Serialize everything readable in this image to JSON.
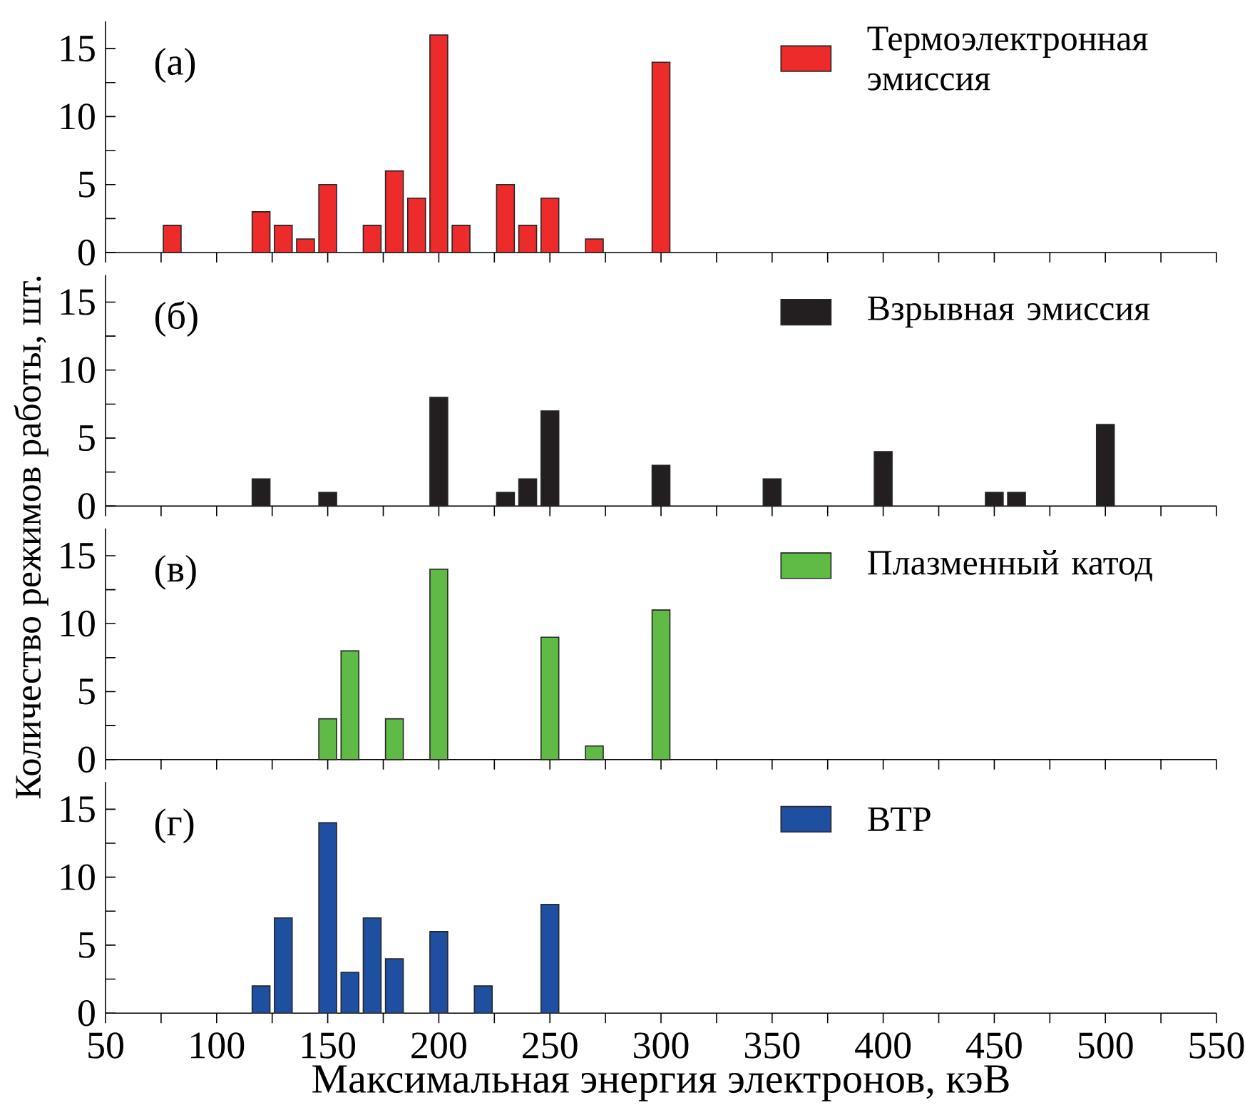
{
  "chart_data": [
    {
      "type": "bar",
      "ylabel": "Количество режимов работы, шт.",
      "annotations": [
        "(а)"
      ],
      "x": [
        80,
        120,
        130,
        140,
        150,
        170,
        180,
        190,
        200,
        210,
        230,
        240,
        250,
        270,
        300
      ],
      "series": [
        {
          "name": "Термоэлектронная эмиссия",
          "color": "#ee2b2b",
          "values": [
            2,
            3,
            2,
            1,
            5,
            2,
            6,
            4,
            16,
            2,
            5,
            2,
            4,
            1,
            14
          ]
        }
      ],
      "xlim": [
        50,
        550
      ],
      "xticks": [
        50,
        {
          "value": 75,
          "label": null
        },
        100,
        {
          "value": 125,
          "label": null
        },
        150,
        {
          "value": 175,
          "label": null
        },
        200,
        {
          "value": 225,
          "label": null
        },
        250,
        {
          "value": 275,
          "label": null
        },
        300,
        {
          "value": 325,
          "label": null
        },
        350,
        {
          "value": 375,
          "label": null
        },
        400,
        {
          "value": 425,
          "label": null
        },
        450,
        {
          "value": 475,
          "label": null
        },
        500,
        {
          "value": 525,
          "label": null
        },
        550
      ],
      "ylim": [
        0,
        17
      ],
      "yticks": [
        0,
        {
          "value": 2.5,
          "label": null
        },
        5,
        {
          "value": 7.5,
          "label": null
        },
        10,
        {
          "value": 12.5,
          "label": null
        },
        15
      ],
      "legend": "top right",
      "tick_labels": "y"
    },
    {
      "type": "bar",
      "annotations": [
        "(б)"
      ],
      "x": [
        120,
        150,
        200,
        230,
        240,
        250,
        300,
        350,
        400,
        450,
        460,
        500
      ],
      "series": [
        {
          "name": "Взрывная эмиссия",
          "color": "#231f20",
          "values": [
            2,
            1,
            8,
            1,
            2,
            7,
            3,
            2,
            4,
            1,
            1,
            6
          ]
        }
      ],
      "xlim": [
        50,
        550
      ],
      "xticks": [
        50,
        {
          "value": 75,
          "label": null
        },
        100,
        {
          "value": 125,
          "label": null
        },
        150,
        {
          "value": 175,
          "label": null
        },
        200,
        {
          "value": 225,
          "label": null
        },
        250,
        {
          "value": 275,
          "label": null
        },
        300,
        {
          "value": 325,
          "label": null
        },
        350,
        {
          "value": 375,
          "label": null
        },
        400,
        {
          "value": 425,
          "label": null
        },
        450,
        {
          "value": 475,
          "label": null
        },
        500,
        {
          "value": 525,
          "label": null
        },
        550
      ],
      "ylim": [
        0,
        17
      ],
      "yticks": [
        0,
        {
          "value": 2.5,
          "label": null
        },
        5,
        {
          "value": 7.5,
          "label": null
        },
        10,
        {
          "value": 12.5,
          "label": null
        },
        15
      ],
      "legend": "top right",
      "tick_labels": "y"
    },
    {
      "type": "bar",
      "annotations": [
        "(в)"
      ],
      "x": [
        150,
        160,
        180,
        200,
        250,
        270,
        300
      ],
      "series": [
        {
          "name": "Плазменный катод",
          "color": "#5fba46",
          "values": [
            3,
            8,
            3,
            14,
            9,
            1,
            11
          ]
        }
      ],
      "xlim": [
        50,
        550
      ],
      "xticks": [
        50,
        {
          "value": 75,
          "label": null
        },
        100,
        {
          "value": 125,
          "label": null
        },
        150,
        {
          "value": 175,
          "label": null
        },
        200,
        {
          "value": 225,
          "label": null
        },
        250,
        {
          "value": 275,
          "label": null
        },
        300,
        {
          "value": 325,
          "label": null
        },
        350,
        {
          "value": 375,
          "label": null
        },
        400,
        {
          "value": 425,
          "label": null
        },
        450,
        {
          "value": 475,
          "label": null
        },
        500,
        {
          "value": 525,
          "label": null
        },
        550
      ],
      "ylim": [
        0,
        17
      ],
      "yticks": [
        0,
        {
          "value": 2.5,
          "label": null
        },
        5,
        {
          "value": 7.5,
          "label": null
        },
        10,
        {
          "value": 12.5,
          "label": null
        },
        15
      ],
      "legend": "top right",
      "tick_labels": "y"
    },
    {
      "type": "bar",
      "xlabel": "Максимальная энергия электронов, кэВ",
      "annotations": [
        "(г)"
      ],
      "x": [
        120,
        130,
        150,
        160,
        170,
        180,
        200,
        220,
        250
      ],
      "series": [
        {
          "name": "ВТР",
          "color": "#1f4fa0",
          "values": [
            2,
            7,
            14,
            3,
            7,
            4,
            6,
            2,
            8
          ]
        }
      ],
      "xlim": [
        50,
        550
      ],
      "xticks": [
        50,
        {
          "value": 75,
          "label": null
        },
        100,
        {
          "value": 125,
          "label": null
        },
        150,
        {
          "value": 175,
          "label": null
        },
        200,
        {
          "value": 225,
          "label": null
        },
        250,
        {
          "value": 275,
          "label": null
        },
        300,
        {
          "value": 325,
          "label": null
        },
        350,
        {
          "value": 375,
          "label": null
        },
        400,
        {
          "value": 425,
          "label": null
        },
        450,
        {
          "value": 475,
          "label": null
        },
        500,
        {
          "value": 525,
          "label": null
        },
        550
      ],
      "ylim": [
        0,
        17
      ],
      "yticks": [
        0,
        {
          "value": 2.5,
          "label": null
        },
        5,
        {
          "value": 7.5,
          "label": null
        },
        10,
        {
          "value": 12.5,
          "label": null
        },
        15
      ],
      "legend": "top right"
    }
  ]
}
